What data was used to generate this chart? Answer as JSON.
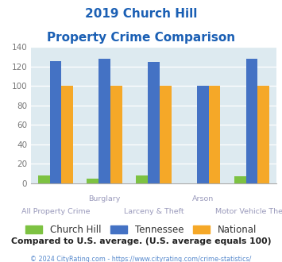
{
  "title_line1": "2019 Church Hill",
  "title_line2": "Property Crime Comparison",
  "categories": [
    "All Property Crime",
    "Burglary",
    "Larceny & Theft",
    "Arson",
    "Motor Vehicle Theft"
  ],
  "church_hill": [
    8,
    5,
    8,
    0,
    7
  ],
  "tennessee": [
    126,
    128,
    125,
    100,
    128
  ],
  "national": [
    100,
    100,
    100,
    100,
    100
  ],
  "colors": {
    "church_hill": "#7dc242",
    "tennessee": "#4472c4",
    "national": "#f5a828"
  },
  "ylim": [
    0,
    140
  ],
  "yticks": [
    0,
    20,
    40,
    60,
    80,
    100,
    120,
    140
  ],
  "title_color": "#1a5fb4",
  "bg_color": "#ddeaf0",
  "subtitle": "Compared to U.S. average. (U.S. average equals 100)",
  "subtitle_color": "#222222",
  "footer": "© 2024 CityRating.com - https://www.cityrating.com/crime-statistics/",
  "footer_color": "#5588cc",
  "xtick_color": "#9999bb",
  "ytick_color": "#777777"
}
